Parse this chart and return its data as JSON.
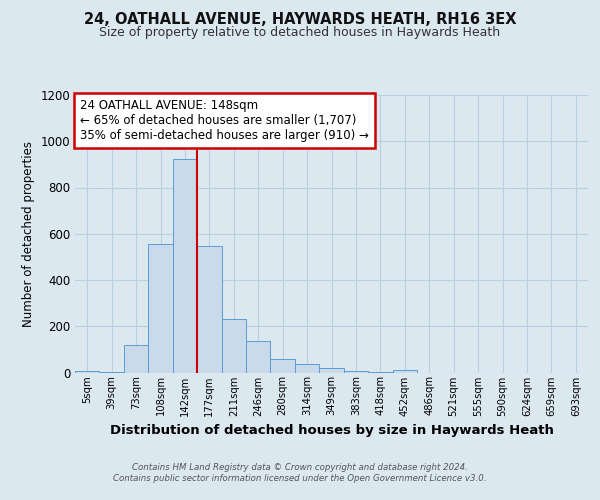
{
  "title_line1": "24, OATHALL AVENUE, HAYWARDS HEATH, RH16 3EX",
  "title_line2": "Size of property relative to detached houses in Haywards Heath",
  "xlabel": "Distribution of detached houses by size in Haywards Heath",
  "ylabel": "Number of detached properties",
  "footer_line1": "Contains HM Land Registry data © Crown copyright and database right 2024.",
  "footer_line2": "Contains public sector information licensed under the Open Government Licence v3.0.",
  "bar_labels": [
    "5sqm",
    "39sqm",
    "73sqm",
    "108sqm",
    "142sqm",
    "177sqm",
    "211sqm",
    "246sqm",
    "280sqm",
    "314sqm",
    "349sqm",
    "383sqm",
    "418sqm",
    "452sqm",
    "486sqm",
    "521sqm",
    "555sqm",
    "590sqm",
    "624sqm",
    "659sqm",
    "693sqm"
  ],
  "bar_values": [
    5,
    2,
    120,
    555,
    925,
    545,
    230,
    135,
    57,
    35,
    20,
    5,
    2,
    10,
    0,
    0,
    0,
    0,
    0,
    0,
    0
  ],
  "bar_color": "#c9daea",
  "bar_edge_color": "#5b9bd5",
  "vline_index": 4,
  "vline_color": "#cc0000",
  "annotation_text": "24 OATHALL AVENUE: 148sqm\n← 65% of detached houses are smaller (1,707)\n35% of semi-detached houses are larger (910) →",
  "annotation_box_color": "white",
  "annotation_box_edge_color": "#cc0000",
  "ylim": [
    0,
    1200
  ],
  "yticks": [
    0,
    200,
    400,
    600,
    800,
    1000,
    1200
  ],
  "background_color": "#dce8f0",
  "plot_bg_color": "#dce8f0",
  "grid_color": "#b8cfe0"
}
